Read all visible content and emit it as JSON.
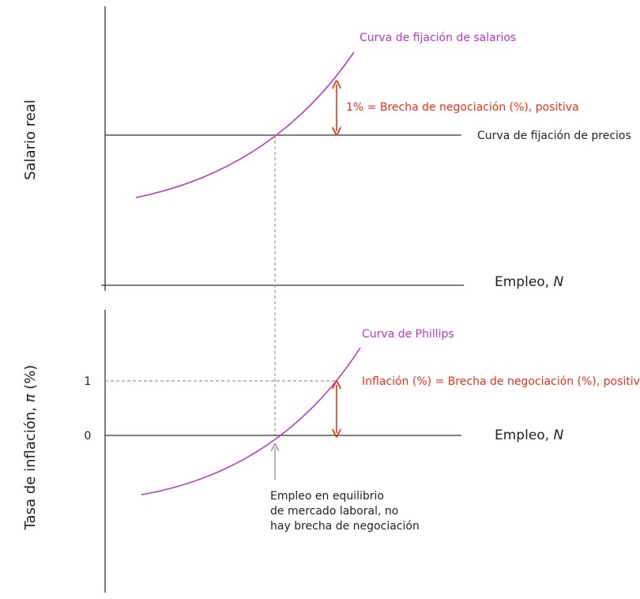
{
  "colors": {
    "axis": "#333333",
    "curve": "#b33cc0",
    "annotation": "#e8331b",
    "dashed": "#999999",
    "text": "#222222"
  },
  "top_panel": {
    "y_label": "Salario real",
    "x_label": "Empleo, ",
    "x_label_var": "N",
    "wage_curve_label": "Curva de fijación de salarios",
    "price_curve_label": "Curva de fijación de precios",
    "gap_label": "1% = Brecha de negociación (%), positiva"
  },
  "bottom_panel": {
    "y_label": "Tasa de inflación, ",
    "y_label_var": "π",
    "y_label_unit": " (%)",
    "x_label": "Empleo, ",
    "x_label_var": "N",
    "tick_1": "1",
    "tick_0": "0",
    "phillips_label": "Curva de Phillips",
    "inflation_label": "Inflación (%) = Brecha de negociación (%), positiva",
    "equilibrium_note": [
      "Empleo en equilibrio",
      "de mercado laboral, no",
      "hay brecha de negociación"
    ]
  }
}
